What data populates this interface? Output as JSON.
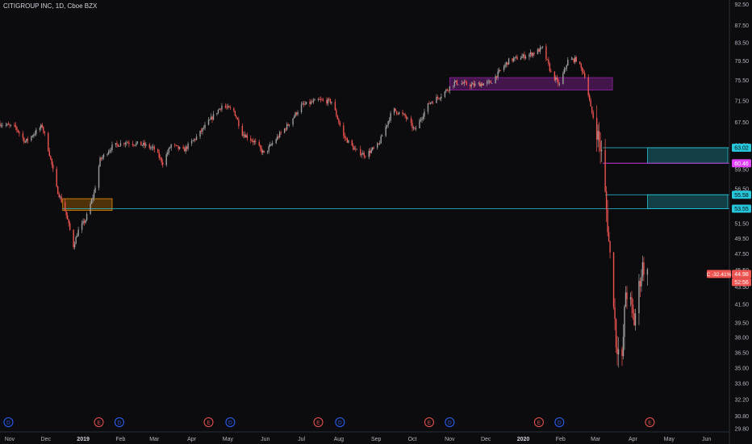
{
  "header": {
    "title": "CITIGROUP INC, 1D, Cboe BZX"
  },
  "price_axis": {
    "labels": [
      "92.50",
      "87.50",
      "83.50",
      "79.50",
      "75.50",
      "71.50",
      "67.50",
      "63.50",
      "59.50",
      "56.50",
      "51.50",
      "49.50",
      "47.50",
      "45.50",
      "43.50",
      "41.50",
      "39.50",
      "38.00",
      "36.50",
      "35.00",
      "33.60",
      "32.20",
      "30.80",
      "29.80"
    ]
  },
  "time_axis": {
    "labels": [
      "Nov",
      "Dec",
      "2019",
      "Feb",
      "Mar",
      "Apr",
      "May",
      "Jun",
      "Jul",
      "Aug",
      "Sep",
      "Oct",
      "Nov",
      "Dec",
      "2020",
      "Feb",
      "Mar",
      "Apr",
      "May",
      "Jun"
    ],
    "bold": [
      "2019",
      "2020"
    ]
  },
  "price_tags": [
    {
      "text": "63.02",
      "color": "#26c6da"
    },
    {
      "text": "60.46",
      "color": "#e040fb"
    },
    {
      "text": "55.58",
      "color": "#26c6da"
    },
    {
      "text": "53.55",
      "color": "#26c6da"
    },
    {
      "text": "44.98",
      "color": "#ef5350"
    },
    {
      "text": "52:56",
      "color": "#ef5350"
    }
  ],
  "change_tag": {
    "text": "C -32.41%",
    "color": "#ef5350"
  },
  "event_markers": [
    {
      "letter": "D",
      "color": "#2962ff"
    },
    {
      "letter": "E",
      "color": "#ef5350"
    },
    {
      "letter": "D",
      "color": "#2962ff"
    },
    {
      "letter": "E",
      "color": "#ef5350"
    },
    {
      "letter": "D",
      "color": "#2962ff"
    },
    {
      "letter": "E",
      "color": "#ef5350"
    },
    {
      "letter": "D",
      "color": "#2962ff"
    },
    {
      "letter": "E",
      "color": "#ef5350"
    },
    {
      "letter": "D",
      "color": "#2962ff"
    },
    {
      "letter": "E",
      "color": "#ef5350"
    },
    {
      "letter": "D",
      "color": "#2962ff"
    },
    {
      "letter": "E",
      "color": "#ef5350"
    }
  ],
  "colors": {
    "background": "#0c0c0e",
    "axis_text": "#b2b5be",
    "up": "#9e9e9e",
    "down": "#ef5350",
    "teal": "#26c6da",
    "magenta": "#e040fb",
    "purple_zone": "#9c27b0",
    "orange_zone": "#ff9800"
  },
  "chart_data": {
    "type": "candlestick",
    "title": "CITIGROUP INC, 1D, Cboe BZX",
    "interval": "1D",
    "y_scale": "log",
    "ylim": [
      29.5,
      93.5
    ],
    "x_range": [
      "2018-10-24",
      "2020-06-20"
    ],
    "price_path": [
      [
        "2018-10-24",
        67.2
      ],
      [
        "2018-11-06",
        66.5
      ],
      [
        "2018-11-14",
        64.0
      ],
      [
        "2018-11-22",
        65.6
      ],
      [
        "2018-11-28",
        66.8
      ],
      [
        "2018-12-04",
        62.0
      ],
      [
        "2018-12-10",
        56.5
      ],
      [
        "2018-12-17",
        53.3
      ],
      [
        "2018-12-24",
        48.5
      ],
      [
        "2018-12-28",
        50.5
      ],
      [
        "2019-01-03",
        52.0
      ],
      [
        "2019-01-10",
        55.8
      ],
      [
        "2019-01-15",
        61.0
      ],
      [
        "2019-01-25",
        63.2
      ],
      [
        "2019-02-05",
        64.0
      ],
      [
        "2019-02-20",
        63.5
      ],
      [
        "2019-03-01",
        62.8
      ],
      [
        "2019-03-08",
        60.5
      ],
      [
        "2019-03-15",
        63.5
      ],
      [
        "2019-03-25",
        62.5
      ],
      [
        "2019-04-05",
        64.8
      ],
      [
        "2019-04-15",
        67.5
      ],
      [
        "2019-04-26",
        70.5
      ],
      [
        "2019-05-06",
        69.5
      ],
      [
        "2019-05-13",
        65.5
      ],
      [
        "2019-05-23",
        64.0
      ],
      [
        "2019-05-31",
        62.0
      ],
      [
        "2019-06-10",
        64.5
      ],
      [
        "2019-06-20",
        67.0
      ],
      [
        "2019-07-01",
        70.5
      ],
      [
        "2019-07-15",
        71.5
      ],
      [
        "2019-07-26",
        71.3
      ],
      [
        "2019-08-05",
        65.0
      ],
      [
        "2019-08-15",
        62.5
      ],
      [
        "2019-08-23",
        61.8
      ],
      [
        "2019-09-03",
        63.5
      ],
      [
        "2019-09-15",
        69.8
      ],
      [
        "2019-09-25",
        68.5
      ],
      [
        "2019-10-03",
        66.0
      ],
      [
        "2019-10-15",
        71.0
      ],
      [
        "2019-10-25",
        72.5
      ],
      [
        "2019-11-05",
        75.0
      ],
      [
        "2019-11-20",
        74.5
      ],
      [
        "2019-12-05",
        75.0
      ],
      [
        "2019-12-20",
        79.5
      ],
      [
        "2020-01-02",
        80.5
      ],
      [
        "2020-01-10",
        81.2
      ],
      [
        "2020-01-17",
        82.2
      ],
      [
        "2020-01-24",
        77.0
      ],
      [
        "2020-01-31",
        74.5
      ],
      [
        "2020-02-07",
        79.5
      ],
      [
        "2020-02-14",
        79.8
      ],
      [
        "2020-02-21",
        76.5
      ],
      [
        "2020-02-26",
        70.0
      ],
      [
        "2020-03-02",
        66.0
      ],
      [
        "2020-03-06",
        62.0
      ],
      [
        "2020-03-09",
        55.5
      ],
      [
        "2020-03-12",
        49.0
      ],
      [
        "2020-03-16",
        42.0
      ],
      [
        "2020-03-18",
        37.5
      ],
      [
        "2020-03-23",
        35.5
      ],
      [
        "2020-03-26",
        43.0
      ],
      [
        "2020-03-30",
        41.5
      ],
      [
        "2020-04-02",
        39.5
      ],
      [
        "2020-04-06",
        43.5
      ],
      [
        "2020-04-09",
        46.0
      ],
      [
        "2020-04-13",
        44.98
      ]
    ],
    "zones": [
      {
        "color": "orange",
        "x_start": "2018-12-15",
        "x_end": "2019-01-25",
        "y_low": 53.3,
        "y_high": 55.0
      },
      {
        "color": "purple",
        "x_start": "2019-11-01",
        "x_end": "2020-03-15",
        "y_low": 73.5,
        "y_high": 76.0
      },
      {
        "color": "teal",
        "x_start": "2020-04-13",
        "x_end": "2020-06-20",
        "y_low": 60.46,
        "y_high": 63.02
      },
      {
        "color": "teal",
        "x_start": "2020-04-13",
        "x_end": "2020-06-20",
        "y_low": 53.55,
        "y_high": 55.58
      }
    ],
    "levels": [
      {
        "value": 63.02,
        "x_start": "2020-03-07",
        "color": "teal"
      },
      {
        "value": 60.46,
        "x_start": "2020-03-07",
        "color": "magenta"
      },
      {
        "value": 55.58,
        "x_start": "2020-03-09",
        "color": "teal"
      },
      {
        "value": 53.55,
        "x_start": "2018-12-15",
        "color": "teal"
      }
    ],
    "last_price": 44.98,
    "change": "-32.41%",
    "events": [
      {
        "type": "dividend",
        "date": "2018-10-31"
      },
      {
        "type": "earnings",
        "date": "2019-01-14"
      },
      {
        "type": "dividend",
        "date": "2019-01-31"
      },
      {
        "type": "earnings",
        "date": "2019-04-15"
      },
      {
        "type": "dividend",
        "date": "2019-05-03"
      },
      {
        "type": "earnings",
        "date": "2019-07-15"
      },
      {
        "type": "dividend",
        "date": "2019-08-02"
      },
      {
        "type": "earnings",
        "date": "2019-10-15"
      },
      {
        "type": "dividend",
        "date": "2019-11-01"
      },
      {
        "type": "earnings",
        "date": "2020-01-14"
      },
      {
        "type": "dividend",
        "date": "2020-01-31"
      },
      {
        "type": "earnings",
        "date": "2020-04-15"
      }
    ]
  }
}
